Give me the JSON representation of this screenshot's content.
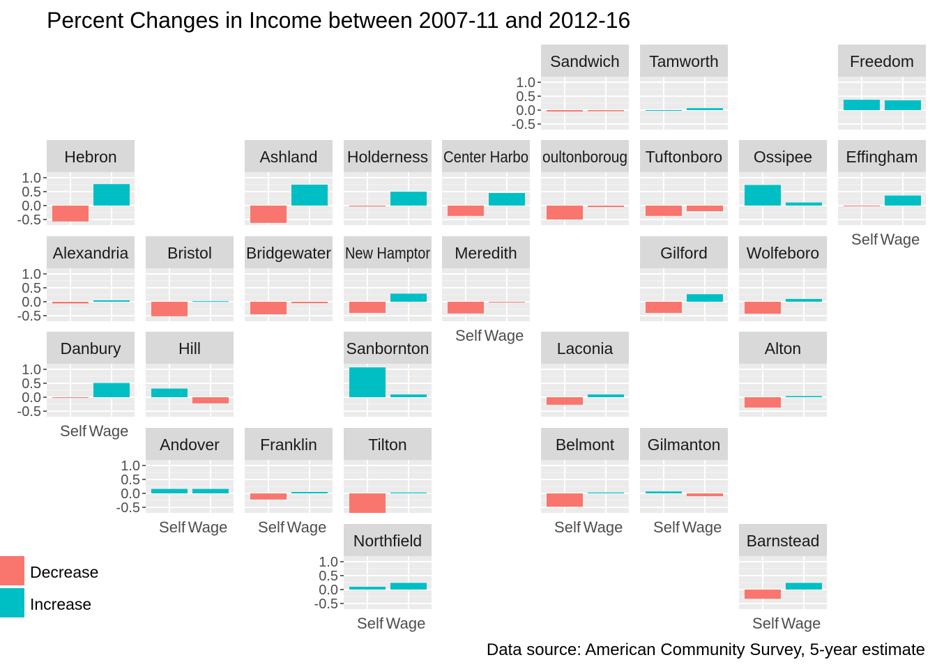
{
  "chart_data": {
    "type": "bar",
    "title": "Percent Changes in Income between 2007-11 and 2012-16",
    "caption": "Data source: American Community Survey, 5-year estimate",
    "categories": [
      "Self",
      "Wage"
    ],
    "ylim": [
      -0.7,
      1.2
    ],
    "yticks": [
      1.0,
      0.5,
      0.0,
      -0.5
    ],
    "ytick_labels": [
      "1.0",
      "0.5",
      "0.0",
      "-0.5"
    ],
    "grid": true,
    "legend": {
      "position": "bottom-left",
      "entries": [
        {
          "label": "Decrease",
          "color": "#F8766D"
        },
        {
          "label": "Increase",
          "color": "#00BFC4"
        }
      ]
    },
    "colors": {
      "Decrease": "#F8766D",
      "Increase": "#00BFC4"
    },
    "panels": [
      {
        "town": "Sandwich",
        "label": "Sandwich",
        "values": [
          -0.05,
          -0.04
        ],
        "yaxis": true,
        "xlabels": false
      },
      {
        "town": "Tamworth",
        "label": "Tamworth",
        "values": [
          0.0,
          0.07
        ],
        "yaxis": false,
        "xlabels": false
      },
      {
        "town": "Freedom",
        "label": "Freedom",
        "values": [
          0.37,
          0.35
        ],
        "yaxis": false,
        "xlabels": false
      },
      {
        "town": "Hebron",
        "label": "Hebron",
        "values": [
          -0.57,
          0.77
        ],
        "yaxis": true,
        "xlabels": false
      },
      {
        "town": "Ashland",
        "label": "Ashland",
        "values": [
          -0.62,
          0.75
        ],
        "yaxis": false,
        "xlabels": false
      },
      {
        "town": "Holderness",
        "label": "Holderness",
        "values": [
          -0.03,
          0.5
        ],
        "yaxis": false,
        "xlabels": false
      },
      {
        "town": "Center Harbor",
        "label": "Center Harbo",
        "values": [
          -0.37,
          0.45
        ],
        "yaxis": false,
        "xlabels": false
      },
      {
        "town": "Moultonborough",
        "label": "oultonboroug",
        "values": [
          -0.5,
          -0.05
        ],
        "yaxis": false,
        "xlabels": false
      },
      {
        "town": "Tuftonboro",
        "label": "Tuftonboro",
        "values": [
          -0.37,
          -0.2
        ],
        "yaxis": false,
        "xlabels": false
      },
      {
        "town": "Ossipee",
        "label": "Ossipee",
        "values": [
          0.74,
          0.11
        ],
        "yaxis": false,
        "xlabels": false
      },
      {
        "town": "Effingham",
        "label": "Effingham",
        "values": [
          -0.02,
          0.36
        ],
        "yaxis": false,
        "xlabels": true
      },
      {
        "town": "Alexandria",
        "label": "Alexandria",
        "values": [
          -0.06,
          0.05
        ],
        "yaxis": true,
        "xlabels": false
      },
      {
        "town": "Bristol",
        "label": "Bristol",
        "values": [
          -0.52,
          0.02
        ],
        "yaxis": false,
        "xlabels": false
      },
      {
        "town": "Bridgewater",
        "label": "Bridgewater",
        "values": [
          -0.45,
          -0.05
        ],
        "yaxis": false,
        "xlabels": false
      },
      {
        "town": "New Hampton",
        "label": "New Hamptor",
        "values": [
          -0.4,
          0.29
        ],
        "yaxis": false,
        "xlabels": false
      },
      {
        "town": "Meredith",
        "label": "Meredith",
        "values": [
          -0.42,
          -0.01
        ],
        "yaxis": false,
        "xlabels": true
      },
      {
        "town": "Gilford",
        "label": "Gilford",
        "values": [
          -0.4,
          0.27
        ],
        "yaxis": false,
        "xlabels": false
      },
      {
        "town": "Wolfeboro",
        "label": "Wolfeboro",
        "values": [
          -0.43,
          0.1
        ],
        "yaxis": false,
        "xlabels": false
      },
      {
        "town": "Danbury",
        "label": "Danbury",
        "values": [
          -0.02,
          0.51
        ],
        "yaxis": true,
        "xlabels": true
      },
      {
        "town": "Hill",
        "label": "Hill",
        "values": [
          0.31,
          -0.22
        ],
        "yaxis": false,
        "xlabels": false
      },
      {
        "town": "Sanbornton",
        "label": "Sanbornton",
        "values": [
          1.07,
          0.1
        ],
        "yaxis": false,
        "xlabels": false
      },
      {
        "town": "Laconia",
        "label": "Laconia",
        "values": [
          -0.27,
          0.1
        ],
        "yaxis": false,
        "xlabels": false
      },
      {
        "town": "Alton",
        "label": "Alton",
        "values": [
          -0.37,
          0.04
        ],
        "yaxis": false,
        "xlabels": false
      },
      {
        "town": "Andover",
        "label": "Andover",
        "values": [
          0.16,
          0.16
        ],
        "yaxis": true,
        "xlabels": true
      },
      {
        "town": "Franklin",
        "label": "Franklin",
        "values": [
          -0.22,
          0.05
        ],
        "yaxis": false,
        "xlabels": true
      },
      {
        "town": "Tilton",
        "label": "Tilton",
        "values": [
          -0.7,
          0.03
        ],
        "yaxis": false,
        "xlabels": false
      },
      {
        "town": "Belmont",
        "label": "Belmont",
        "values": [
          -0.48,
          0.03
        ],
        "yaxis": false,
        "xlabels": true
      },
      {
        "town": "Gilmanton",
        "label": "Gilmanton",
        "values": [
          0.07,
          -0.1
        ],
        "yaxis": false,
        "xlabels": true
      },
      {
        "town": "Northfield",
        "label": "Northfield",
        "values": [
          0.1,
          0.24
        ],
        "yaxis": true,
        "xlabels": true
      },
      {
        "town": "Barnstead",
        "label": "Barnstead",
        "values": [
          -0.33,
          0.24
        ],
        "yaxis": false,
        "xlabels": true
      }
    ]
  }
}
